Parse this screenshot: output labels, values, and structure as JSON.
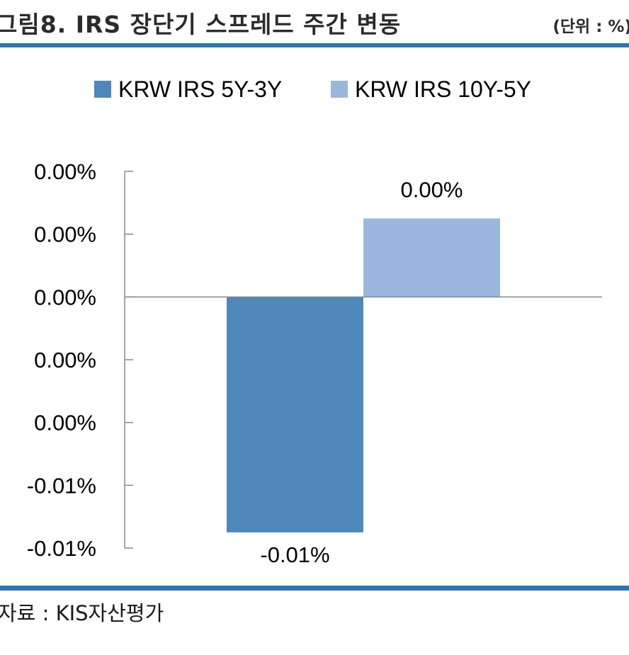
{
  "figure": {
    "title": "그림8. IRS 장단기 스프레드 주간 변동",
    "unit": "(단위 : %)",
    "source": "자료 : KIS자산평가"
  },
  "colors": {
    "rule": "#2e75b6",
    "series_1": "#4f87bb",
    "series_2": "#9ab8de",
    "axis": "#888888"
  },
  "chart_data": {
    "type": "bar",
    "categories": [
      ""
    ],
    "series": [
      {
        "name": "KRW IRS 5Y-3Y",
        "values": [
          -0.0075
        ],
        "label": "-0.01%"
      },
      {
        "name": "KRW IRS 10Y-5Y",
        "values": [
          0.0025
        ],
        "label": "0.00%"
      }
    ],
    "ylim": [
      -0.008,
      0.004
    ],
    "yticks": [
      0.004,
      0.002,
      0.0,
      -0.002,
      -0.004,
      -0.006,
      -0.008
    ],
    "ytick_labels": [
      "0.00%",
      "0.00%",
      "0.00%",
      "0.00%",
      "0.00%",
      "-0.01%",
      "-0.01%"
    ],
    "xlabel": "",
    "ylabel": "",
    "grid": false,
    "legend_position": "top"
  }
}
